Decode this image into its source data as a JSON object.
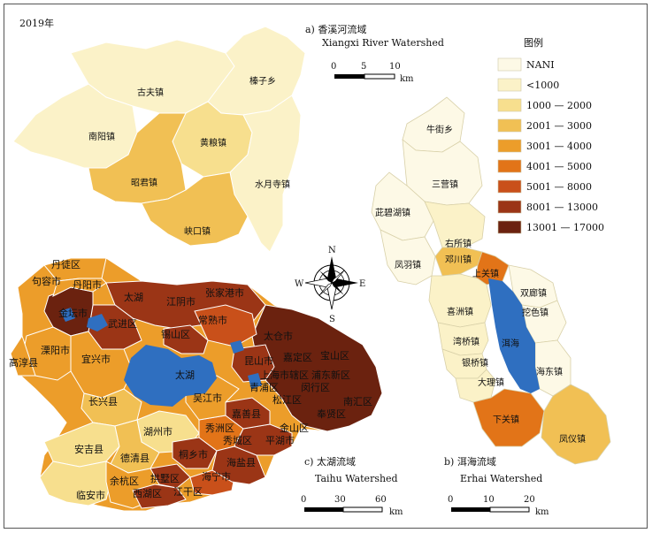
{
  "year_label": "2019年",
  "panels": {
    "a": {
      "title_cn": "a) 香溪河流域",
      "title_en": "Xiangxi River Watershed",
      "scale_ticks": [
        "0",
        "5",
        "10"
      ],
      "scale_unit": "km"
    },
    "b": {
      "title_cn": "b) 洱海流域",
      "title_en": "Erhai Watershed",
      "scale_ticks": [
        "0",
        "10",
        "20"
      ],
      "scale_unit": "km"
    },
    "c": {
      "title_cn": "c) 太湖流域",
      "title_en": "Taihu Watershed",
      "scale_ticks": [
        "0",
        "30",
        "60"
      ],
      "scale_unit": "km"
    }
  },
  "compass": {
    "n": "N",
    "s": "S",
    "e": "E",
    "w": "W"
  },
  "legend": {
    "title": "图例",
    "items": [
      {
        "label": "NANI",
        "color": "#fdf9e6"
      },
      {
        "label": "<1000",
        "color": "#fbf2c8"
      },
      {
        "label": "1000 — 2000",
        "color": "#f7df8e"
      },
      {
        "label": "2001 — 3000",
        "color": "#f1c054"
      },
      {
        "label": "3001 — 4000",
        "color": "#ec9d2a"
      },
      {
        "label": "4001 — 5000",
        "color": "#e27418"
      },
      {
        "label": "5001 — 8000",
        "color": "#c9501a"
      },
      {
        "label": "8001 — 13000",
        "color": "#9b3516"
      },
      {
        "label": "13001 — 17000",
        "color": "#6b220f"
      }
    ]
  },
  "water_color": "#2f6fc0",
  "xiangxi_labels": [
    "古夫镇",
    "榛子乡",
    "南阳镇",
    "黄粮镇",
    "昭君镇",
    "水月寺镇",
    "峡口镇"
  ],
  "erhai_labels": [
    "牛街乡",
    "三营镇",
    "茈碧湖镇",
    "凤羽镇",
    "右所镇",
    "邓川镇",
    "上关镇",
    "双廊镇",
    "挖色镇",
    "喜洲镇",
    "湾桥镇",
    "洱海",
    "银桥镇",
    "海东镇",
    "大理镇",
    "下关镇",
    "凤仪镇"
  ],
  "taihu_labels": [
    "丹徒区",
    "句容市",
    "丹阳市",
    "金坛市",
    "太湖",
    "江阴市",
    "张家港市",
    "武进区",
    "常熟市",
    "溧阳市",
    "锡山区",
    "太仓市",
    "高淳县",
    "宜兴市",
    "昆山市",
    "嘉定区",
    "宝山区",
    "太湖",
    "吴江市",
    "青浦区",
    "上海市辖区",
    "浦东新区",
    "闵行区",
    "长兴县",
    "松江区",
    "南汇区",
    "嘉善县",
    "奉贤区",
    "湖州市",
    "秀洲区",
    "金山区",
    "安吉县",
    "秀城区",
    "平湖市",
    "德清县",
    "桐乡市",
    "海盐县",
    "余杭区",
    "拱墅区",
    "海宁市",
    "临安市",
    "西湖区",
    "江干区"
  ]
}
